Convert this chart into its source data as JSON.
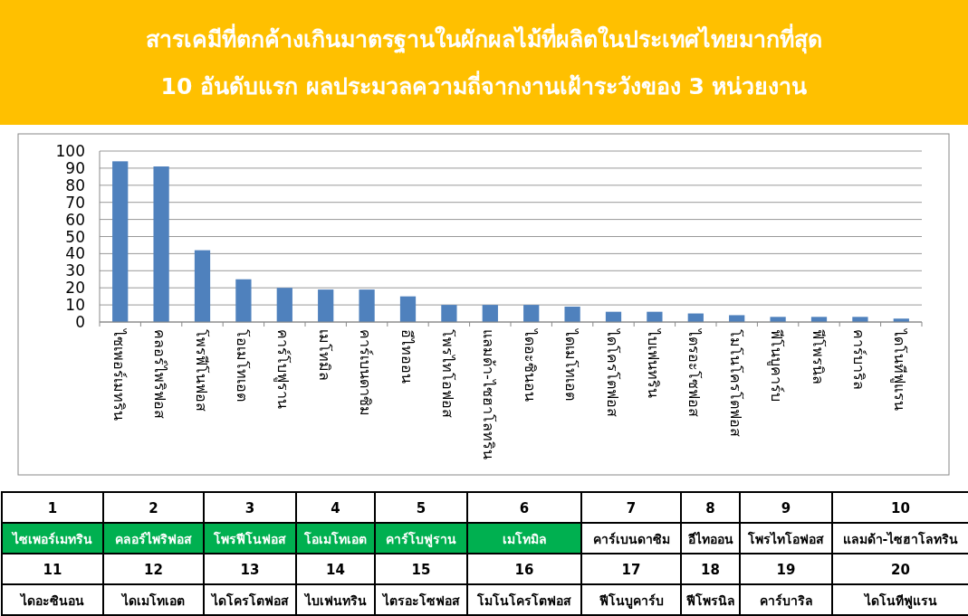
{
  "chart_data": {
    "type": "bar",
    "title": "สารเคมีที่ตกค้างเกินมาตรฐานในผักผลไม้ที่ผลิตในประเทศไทยมากที่สุด",
    "subtitle": "10 อันดับแรก ผลประมวลความถี่จากงานเฝ้าระวังของ 3 หน่วยงาน",
    "categories": [
      "ไซเพอร์เมทริน",
      "คลอร์ไพริฟอส",
      "โพรฟีโนฟอส",
      "โอเมโทเอต",
      "คาร์โบฟูราน",
      "เมโทมิล",
      "คาร์เบนดาซิม",
      "อีไทออน",
      "โพรไทโอฟอส",
      "แลมด้า-ไซฮาโลทริน",
      "ไดอะซินอน",
      "ไดเมโทเอต",
      "ไดโครโตฟอส",
      "ไบเฟนทริน",
      "ไตรอะโซฟอส",
      "โมโนโครโตฟอส",
      "ฟีโนบูคาร์บ",
      "ฟีโพรนิล",
      "คาร์บาริล",
      "ไดโนทีฟูแรน"
    ],
    "values": [
      94,
      91,
      42,
      25,
      20,
      19,
      19,
      15,
      10,
      10,
      10,
      9,
      6,
      6,
      5,
      4,
      3,
      3,
      3,
      2
    ],
    "color": "#4f81bd",
    "ylim": [
      0,
      100
    ],
    "yticks": [
      0,
      10,
      20,
      30,
      40,
      50,
      60,
      70,
      80,
      90,
      100
    ],
    "grid": "y",
    "annotations": [
      "1",
      "2",
      "3",
      "4",
      "5",
      "6",
      "7",
      "8",
      "9",
      "10",
      "ไซเพอร์เมทริน",
      "คลอร์ไพริฟอส",
      "โพรฟีโนฟอส",
      "โอเมโทเอต",
      "คาร์โบฟูราน",
      "เมโทมิล",
      "คาร์เบนดาซิม",
      "อีไทออน",
      "โพรไทโอฟอส",
      "แลมด้า-ไซฮาโลทริน",
      "11",
      "12",
      "13",
      "14",
      "15",
      "16",
      "17",
      "18",
      "19",
      "20",
      "ไดอะซินอน",
      "ไดเมโทเอต",
      "ไดโครโตฟอส",
      "ไบเฟนทริน",
      "ไตรอะโซฟอส",
      "โมโนโครโตฟอส",
      "ฟีโนบูคาร์บ",
      "ฟีโพรนิล",
      "คาร์บาริล",
      "ไดโนทีฟูแรน"
    ]
  }
}
